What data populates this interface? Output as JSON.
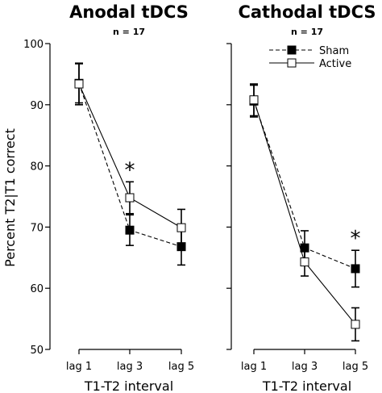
{
  "y_label": "Percent T2|T1 correct",
  "legend": {
    "placement": "top-right",
    "items": [
      "Sham",
      "Active"
    ]
  },
  "chart_data": [
    {
      "type": "line",
      "title": "Anodal tDCS",
      "subtitle": "n = 17",
      "xlabel": "T1-T2 interval",
      "ylabel": "Percent T2|T1 correct",
      "categories": [
        "lag 1",
        "lag 3",
        "lag 5"
      ],
      "ylim": [
        50,
        100
      ],
      "yticks": [
        "50",
        "60",
        "70",
        "80",
        "90",
        "100"
      ],
      "grid": false,
      "series": [
        {
          "name": "Sham",
          "marker": "filled-square",
          "line": "dashed",
          "values": [
            93.5,
            69.5,
            66.8
          ],
          "errors": [
            3.2,
            2.5,
            3.0
          ]
        },
        {
          "name": "Active",
          "marker": "open-square",
          "line": "solid",
          "values": [
            93.4,
            74.8,
            69.9
          ],
          "errors": [
            3.4,
            2.6,
            3.0
          ]
        }
      ],
      "annotations": [
        {
          "text": "*",
          "category": "lag 3"
        }
      ]
    },
    {
      "type": "line",
      "title": "Cathodal tDCS",
      "subtitle": "n = 17",
      "xlabel": "T1-T2 interval",
      "categories": [
        "lag 1",
        "lag 3",
        "lag 5"
      ],
      "ylim": [
        50,
        100
      ],
      "grid": false,
      "series": [
        {
          "name": "Sham",
          "marker": "filled-square",
          "line": "dashed",
          "values": [
            90.6,
            66.6,
            63.2
          ],
          "errors": [
            2.6,
            2.8,
            3.0
          ]
        },
        {
          "name": "Active",
          "marker": "open-square",
          "line": "solid",
          "values": [
            90.8,
            64.3,
            54.1
          ],
          "errors": [
            2.6,
            2.3,
            2.7
          ]
        }
      ],
      "annotations": [
        {
          "text": "*",
          "category": "lag 5"
        }
      ]
    }
  ]
}
